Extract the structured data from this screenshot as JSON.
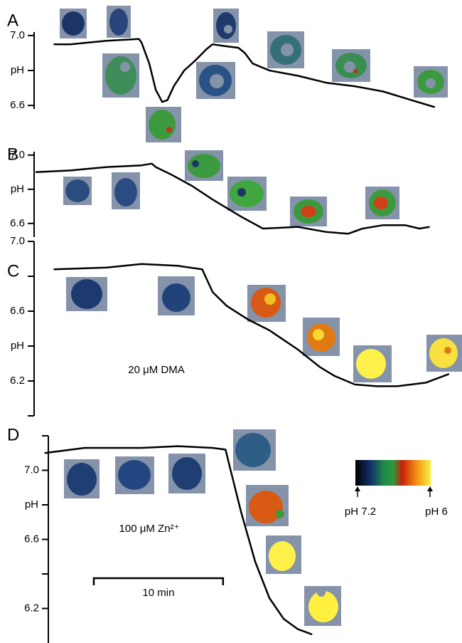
{
  "chart_data": [
    {
      "type": "line",
      "panel_label": "A",
      "ylabel": "pH",
      "series": [
        {
          "color": "#000000",
          "x": [
            1.4,
            2.7,
            5.5,
            8.0,
            8.2,
            8.8,
            9.3,
            9.8,
            10.2,
            10.7,
            11.5,
            12.4,
            13.2,
            13.7,
            14.6,
            15.7,
            16.2,
            16.8,
            18.1,
            20.3,
            22.5,
            24.7,
            26.9,
            29.1,
            30.9
          ],
          "values": [
            6.95,
            6.95,
            6.97,
            6.98,
            6.96,
            6.84,
            6.69,
            6.62,
            6.63,
            6.71,
            6.8,
            6.86,
            6.92,
            6.95,
            6.94,
            6.93,
            6.9,
            6.84,
            6.8,
            6.77,
            6.73,
            6.71,
            6.68,
            6.63,
            6.59
          ]
        }
      ],
      "xlim": [
        0,
        33
      ],
      "ylim": [
        6.58,
        7.02
      ],
      "yticks": [
        6.6,
        {
          "value": 7.0,
          "label": "7.0"
        }
      ],
      "yminorticks": [
        6.8
      ]
    },
    {
      "type": "line",
      "panel_label": "B",
      "ylabel": "pH",
      "series": [
        {
          "color": "#000000",
          "x": [
            0.0,
            2.7,
            5.5,
            8.2,
            9.0,
            9.3,
            10.4,
            12.1,
            13.7,
            15.9,
            17.6,
            20.3,
            22.5,
            24.2,
            25.3,
            26.9,
            28.6,
            29.7,
            30.5
          ],
          "values": [
            6.9,
            6.91,
            6.93,
            6.94,
            6.95,
            6.93,
            6.89,
            6.82,
            6.74,
            6.64,
            6.57,
            6.58,
            6.55,
            6.54,
            6.57,
            6.59,
            6.59,
            6.57,
            6.58
          ]
        }
      ],
      "xlim": [
        0,
        33
      ],
      "ylim": [
        6.52,
        7.02
      ],
      "yticks": [
        6.6,
        {
          "value": 7.0,
          "label": "7.0"
        }
      ],
      "yminorticks": [
        6.8
      ]
    },
    {
      "type": "line",
      "panel_label": "C",
      "ylabel": "pH",
      "annotation": "20 μM DMA",
      "series": [
        {
          "color": "#000000",
          "x": [
            1.4,
            5.5,
            8.2,
            11.0,
            12.9,
            13.7,
            14.8,
            16.5,
            18.1,
            20.3,
            22.0,
            23.1,
            24.7,
            26.4,
            28.0,
            30.2,
            32.0
          ],
          "values": [
            6.84,
            6.85,
            6.87,
            6.86,
            6.84,
            6.71,
            6.63,
            6.55,
            6.49,
            6.38,
            6.28,
            6.23,
            6.18,
            6.17,
            6.17,
            6.19,
            6.24
          ]
        }
      ],
      "xlim": [
        0,
        33
      ],
      "ylim": [
        6.0,
        7.0
      ],
      "yticks": [
        6.2,
        6.6,
        {
          "value": 7.0,
          "label": "7.0"
        }
      ],
      "yminorticks": [
        6.0,
        6.4,
        6.8
      ]
    },
    {
      "type": "line",
      "panel_label": "D",
      "ylabel": "pH",
      "annotation": "100 μM Zn²⁺",
      "scale_bar": {
        "label": "10 min",
        "length": 10
      },
      "series": [
        {
          "color": "#000000",
          "x": [
            0.7,
            3.8,
            8.2,
            11.0,
            13.7,
            14.7,
            15.1,
            15.9,
            17.0,
            18.1,
            19.2,
            20.3,
            21.4
          ],
          "values": [
            7.1,
            7.13,
            7.13,
            7.14,
            7.13,
            7.12,
            7.0,
            6.76,
            6.47,
            6.26,
            6.14,
            6.08,
            6.05
          ]
        }
      ],
      "xlim": [
        0,
        33
      ],
      "ylim": [
        6.0,
        7.2
      ],
      "yticks": [
        6.2,
        6.6,
        {
          "value": 7.0,
          "label": "7.0"
        }
      ],
      "yminorticks": [
        6.4,
        6.8,
        7.2
      ]
    }
  ],
  "colorbar": {
    "labels": [
      "pH 7.2",
      "pH 6"
    ]
  }
}
